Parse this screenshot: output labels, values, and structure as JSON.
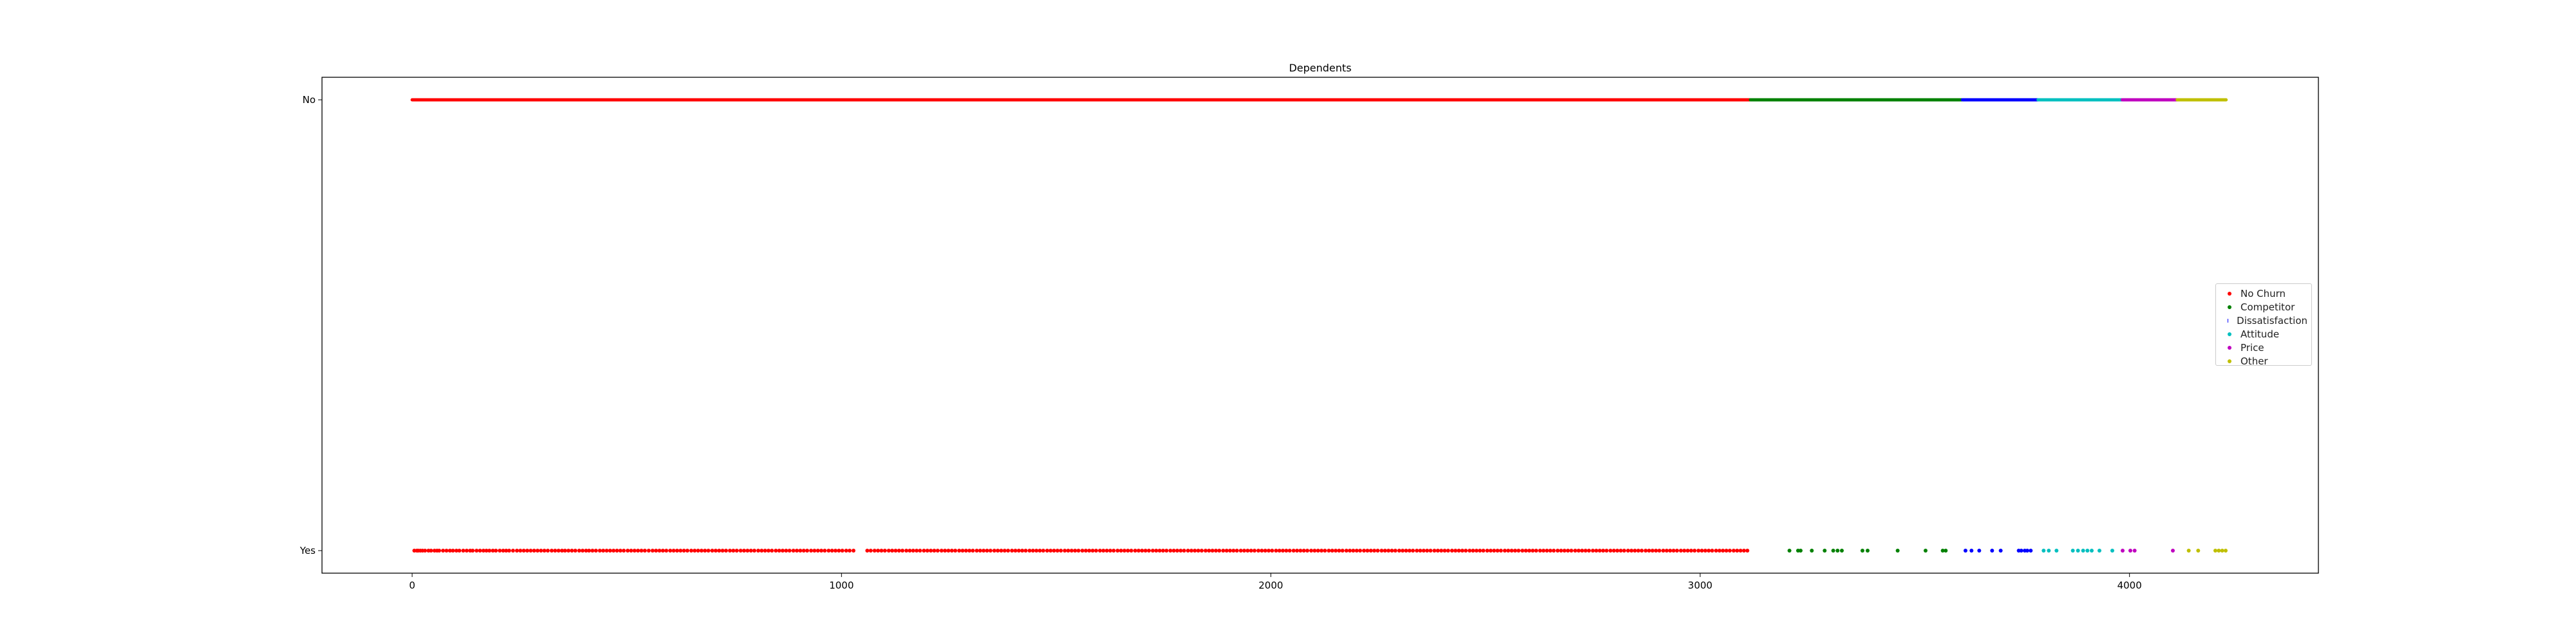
{
  "chart_data": {
    "type": "scatter",
    "title": "Dependents",
    "xlabel": "",
    "ylabel": "",
    "xlim": [
      -210,
      4440
    ],
    "x_ticks": [
      0,
      1000,
      2000,
      3000,
      4000
    ],
    "y_categories": [
      "Yes",
      "No"
    ],
    "grid": false,
    "legend_position": "right",
    "series": [
      {
        "name": "No Churn",
        "color": "#ff0000",
        "x_range": [
          0,
          3116
        ],
        "yes_points": [
          5,
          11,
          14,
          19,
          24,
          30,
          38,
          44,
          52,
          58,
          63,
          72,
          80,
          88,
          95,
          103,
          110,
          119,
          127,
          135,
          141,
          150,
          158,
          166,
          173,
          180,
          188,
          195,
          204,
          212,
          219,
          226,
          235,
          244,
          252,
          260,
          268,
          276,
          284,
          292,
          300,
          308,
          316,
          325,
          333,
          341,
          349,
          356,
          364,
          372,
          380,
          389,
          397,
          405,
          412,
          420,
          428,
          437,
          445,
          453,
          461,
          469,
          477,
          485,
          493,
          502,
          510,
          518,
          526,
          534,
          542,
          551,
          560,
          568,
          576,
          584,
          592,
          601,
          609,
          617,
          625,
          633,
          641,
          650,
          658,
          666,
          674,
          682,
          690,
          699,
          707,
          715,
          723,
          731,
          740,
          748,
          756,
          765,
          773,
          781,
          789,
          797,
          806,
          814,
          822,
          830,
          838,
          847,
          855,
          863,
          871,
          879,
          888,
          896,
          904,
          912,
          920,
          929,
          937,
          945,
          953,
          961,
          970,
          978,
          986,
          994,
          1002,
          1011,
          1019,
          1028,
          1060,
          1068,
          1077,
          1085,
          1093,
          1101,
          1110,
          1118,
          1126,
          1134,
          1142,
          1151,
          1159,
          1167,
          1175,
          1183,
          1192,
          1200,
          1208,
          1216,
          1224,
          1233,
          1241,
          1249,
          1257,
          1265,
          1274,
          1282,
          1290,
          1298,
          1306,
          1315,
          1323,
          1331,
          1339,
          1347,
          1356,
          1364,
          1372,
          1380,
          1388,
          1397,
          1405,
          1413,
          1421,
          1429,
          1438,
          1446,
          1454,
          1462,
          1470,
          1479,
          1487,
          1495,
          1503,
          1511,
          1520,
          1528,
          1536,
          1544,
          1552,
          1561,
          1569,
          1577,
          1585,
          1593,
          1602,
          1610,
          1618,
          1626,
          1634,
          1643,
          1651,
          1659,
          1667,
          1675,
          1684,
          1692,
          1700,
          1708,
          1716,
          1725,
          1733,
          1741,
          1749,
          1757,
          1766,
          1774,
          1782,
          1790,
          1798,
          1807,
          1815,
          1823,
          1831,
          1839,
          1848,
          1856,
          1864,
          1872,
          1880,
          1889,
          1897,
          1905,
          1913,
          1921,
          1930,
          1938,
          1946,
          1954,
          1962,
          1971,
          1979,
          1987,
          1995,
          2003,
          2012,
          2020,
          2028,
          2036,
          2044,
          2053,
          2061,
          2069,
          2077,
          2085,
          2094,
          2102,
          2110,
          2118,
          2126,
          2135,
          2143,
          2151,
          2159,
          2167,
          2176,
          2184,
          2192,
          2200,
          2208,
          2217,
          2225,
          2233,
          2241,
          2249,
          2258,
          2266,
          2274,
          2282,
          2290,
          2299,
          2307,
          2315,
          2323,
          2331,
          2340,
          2348,
          2356,
          2364,
          2372,
          2381,
          2389,
          2397,
          2405,
          2413,
          2422,
          2430,
          2438,
          2446,
          2454,
          2463,
          2471,
          2479,
          2487,
          2495,
          2504,
          2512,
          2520,
          2528,
          2536,
          2545,
          2553,
          2561,
          2569,
          2577,
          2586,
          2594,
          2602,
          2610,
          2618,
          2627,
          2635,
          2643,
          2651,
          2659,
          2668,
          2676,
          2684,
          2692,
          2700,
          2709,
          2717,
          2725,
          2733,
          2741,
          2750,
          2758,
          2766,
          2774,
          2782,
          2791,
          2799,
          2807,
          2815,
          2823,
          2832,
          2840,
          2848,
          2856,
          2864,
          2873,
          2881,
          2889,
          2897,
          2905,
          2914,
          2922,
          2930,
          2938,
          2946,
          2955,
          2963,
          2971,
          2979,
          2987,
          2996,
          3004,
          3012,
          3020,
          3028,
          3037,
          3045,
          3053,
          3061,
          3069,
          3078,
          3086,
          3094,
          3102,
          3110
        ]
      },
      {
        "name": "Competitor",
        "color": "#008000",
        "x_range": [
          3117,
          3610
        ],
        "yes_points": [
          3208,
          3228,
          3234,
          3260,
          3290,
          3310,
          3320,
          3330,
          3378,
          3390,
          3460,
          3525,
          3565,
          3572
        ]
      },
      {
        "name": "Dissatisfaction",
        "color": "#0000ff",
        "x_range": [
          3611,
          3786
        ],
        "yes_points": [
          3618,
          3632,
          3650,
          3680,
          3700,
          3742,
          3748,
          3756,
          3762,
          3770
        ]
      },
      {
        "name": "Attitude",
        "color": "#00bfbf",
        "x_range": [
          3787,
          3982
        ],
        "yes_points": [
          3800,
          3812,
          3830,
          3868,
          3880,
          3892,
          3902,
          3912,
          3930,
          3960
        ]
      },
      {
        "name": "Price",
        "color": "#bf00bf",
        "x_range": [
          3983,
          4110
        ],
        "yes_points": [
          3984,
          4002,
          4012,
          4101
        ]
      },
      {
        "name": "Other",
        "color": "#bfbf00",
        "x_range": [
          4111,
          4225
        ],
        "yes_points": [
          4138,
          4160,
          4200,
          4208,
          4216,
          4224
        ]
      }
    ]
  }
}
